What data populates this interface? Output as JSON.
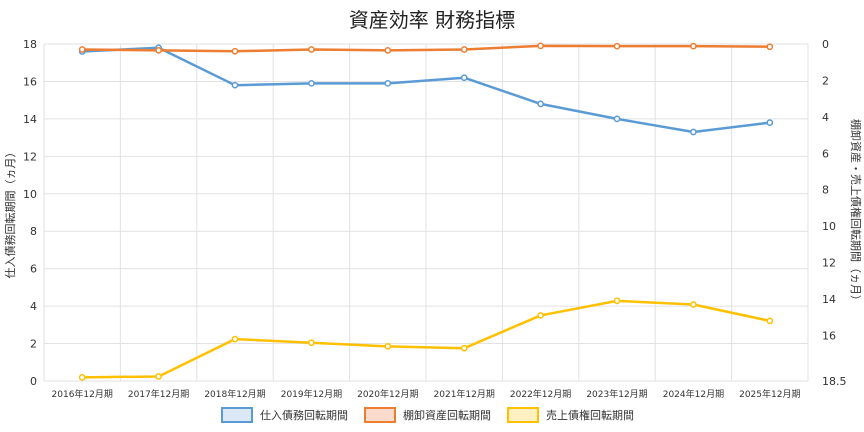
{
  "chart_data": {
    "type": "line",
    "title": "資産効率 財務指標",
    "categories": [
      "2016年12月期",
      "2017年12月期",
      "2018年12月期",
      "2019年12月期",
      "2020年12月期",
      "2021年12月期",
      "2022年12月期",
      "2023年12月期",
      "2024年12月期",
      "2025年12月期"
    ],
    "y_left": {
      "label": "仕入債務回転期間（ヵ月）",
      "range": [
        0,
        18
      ],
      "ticks": [
        0,
        2,
        4,
        6,
        8,
        10,
        12,
        14,
        16,
        18
      ]
    },
    "y_right": {
      "label": "棚卸資産・売上債権回転期間（ヵ月）",
      "range": [
        0,
        18.5
      ],
      "inverted": true,
      "ticks": [
        0,
        2,
        4,
        6,
        8,
        10,
        12,
        14,
        16,
        18.5
      ],
      "tick_labels": [
        "0",
        "2",
        "4",
        "6",
        "8",
        "10",
        "12",
        "14",
        "16",
        "18.5"
      ]
    },
    "grid": true,
    "legend_position": "bottom",
    "series": [
      {
        "name": "仕入債務回転期間",
        "axis": "left",
        "color": "#5b9bd5",
        "values": [
          17.6,
          17.8,
          15.8,
          15.9,
          15.9,
          16.2,
          14.8,
          14.0,
          13.3,
          13.8
        ]
      },
      {
        "name": "棚卸資産回転期間",
        "axis": "right",
        "color": "#ed7d31",
        "values": [
          0.3,
          0.35,
          0.4,
          0.3,
          0.35,
          0.3,
          0.1,
          0.12,
          0.12,
          0.15
        ]
      },
      {
        "name": "売上債権回転期間",
        "axis": "right",
        "color": "#ffc000",
        "values": [
          18.3,
          18.25,
          16.2,
          16.4,
          16.6,
          16.7,
          14.9,
          14.1,
          14.3,
          15.2
        ]
      }
    ]
  }
}
